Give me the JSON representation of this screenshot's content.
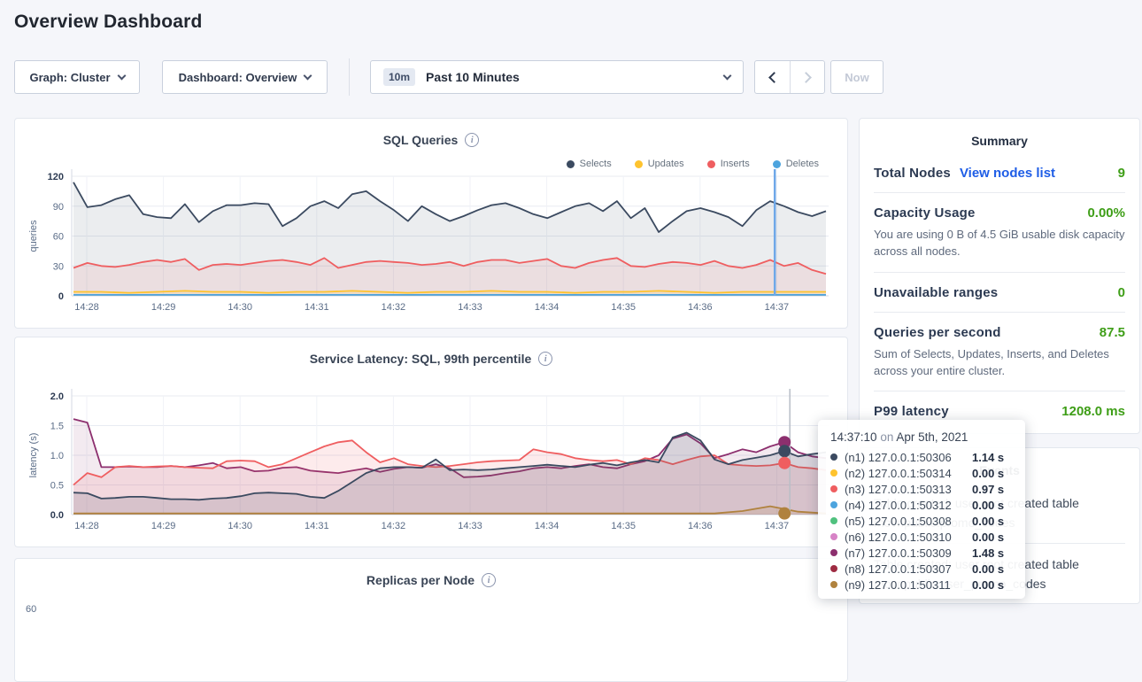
{
  "page": {
    "title": "Overview Dashboard"
  },
  "controls": {
    "graph_dropdown": "Graph: Cluster",
    "dashboard_dropdown": "Dashboard: Overview",
    "time_badge": "10m",
    "time_label": "Past 10 Minutes",
    "now_label": "Now"
  },
  "colors": {
    "selects": "#3b4a60",
    "updates": "#fec32e",
    "inserts": "#ef5e60",
    "deletes": "#4da4de",
    "n5_green": "#50c17e",
    "n6_pink": "#d783c6",
    "n7_purple": "#8c2f6e",
    "n8_maroon": "#9e2b42",
    "n9_khaki": "#b0823e",
    "accent_green": "#3e9e17",
    "link_blue": "#1e5de6",
    "sql_hover_line": "#6fa8e8",
    "latency_hover_line": "#b9bec7"
  },
  "chart_data": [
    {
      "id": "sql",
      "type": "line",
      "title": "SQL Queries",
      "ylabel": "queries",
      "ylim": [
        0,
        120
      ],
      "y_ticks": [
        0,
        30,
        60,
        90,
        120
      ],
      "y_tick_labels": [
        "0",
        "30",
        "60",
        "90",
        "120"
      ],
      "x_ticks": [
        "14:28",
        "14:29",
        "14:30",
        "14:31",
        "14:32",
        "14:33",
        "14:34",
        "14:35",
        "14:36",
        "14:37"
      ],
      "grid": true,
      "legend_position": "top-right",
      "legend": [
        {
          "label": "Selects",
          "color": "#3b4a60"
        },
        {
          "label": "Updates",
          "color": "#fec32e"
        },
        {
          "label": "Inserts",
          "color": "#ef5e60"
        },
        {
          "label": "Deletes",
          "color": "#4da4de"
        }
      ],
      "series": [
        {
          "name": "Selects",
          "color": "#3b4a60",
          "fill": "rgba(59,74,96,0.10)",
          "values": [
            114,
            89,
            91,
            97,
            101,
            82,
            79,
            78,
            92,
            74,
            85,
            91,
            91,
            93,
            92,
            70,
            78,
            90,
            95,
            88,
            102,
            105,
            95,
            86,
            75,
            90,
            82,
            75,
            80,
            86,
            91,
            93,
            88,
            82,
            78,
            84,
            90,
            93,
            85,
            95,
            78,
            88,
            64,
            75,
            85,
            88,
            84,
            79,
            70,
            86,
            95,
            90,
            84,
            80,
            85
          ]
        },
        {
          "name": "Inserts",
          "color": "#ef5e60",
          "fill": "rgba(239,94,96,0.10)",
          "values": [
            28,
            33,
            30,
            29,
            31,
            34,
            36,
            34,
            37,
            26,
            31,
            32,
            31,
            33,
            35,
            36,
            34,
            31,
            38,
            28,
            31,
            34,
            35,
            34,
            33,
            31,
            32,
            34,
            30,
            34,
            36,
            36,
            33,
            35,
            37,
            30,
            28,
            33,
            36,
            38,
            30,
            29,
            32,
            34,
            33,
            31,
            35,
            30,
            28,
            31,
            36,
            30,
            33,
            26,
            22
          ]
        },
        {
          "name": "Updates",
          "color": "#fec32e",
          "fill": "rgba(254,195,46,0.15)",
          "values": [
            4,
            4,
            3,
            4,
            5,
            4,
            4,
            3,
            4,
            4,
            5,
            4,
            3,
            4,
            4,
            5,
            4,
            4,
            3,
            4,
            4,
            5,
            4,
            3,
            4,
            4,
            4,
            4
          ]
        },
        {
          "name": "Deletes",
          "color": "#4da4de",
          "fill": "rgba(77,164,222,0.12)",
          "values": [
            1,
            1,
            1,
            1,
            1,
            1,
            1,
            1,
            1,
            1
          ]
        }
      ],
      "hover": {
        "x_frac": 0.932,
        "line_color": "#6fa8e8",
        "line_width": 2.5,
        "dots": []
      }
    },
    {
      "id": "latency",
      "type": "line",
      "title": "Service Latency: SQL, 99th percentile",
      "ylabel": "latency (s)",
      "ylim": [
        0,
        2.0
      ],
      "y_ticks": [
        0,
        0.5,
        1.0,
        1.5,
        2.0
      ],
      "y_tick_labels": [
        "0.0",
        "0.5",
        "1.0",
        "1.5",
        "2.0"
      ],
      "x_ticks": [
        "14:28",
        "14:29",
        "14:30",
        "14:31",
        "14:32",
        "14:33",
        "14:34",
        "14:35",
        "14:36",
        "14:37"
      ],
      "grid": true,
      "series": [
        {
          "name": "(n7) 127.0.0.1:50309",
          "color": "#8c2f6e",
          "fill": "rgba(140,47,110,0.10)",
          "values": [
            1.61,
            1.55,
            0.8,
            0.8,
            0.81,
            0.8,
            0.8,
            0.82,
            0.8,
            0.83,
            0.87,
            0.78,
            0.8,
            0.73,
            0.74,
            0.79,
            0.8,
            0.74,
            0.72,
            0.7,
            0.74,
            0.78,
            0.72,
            0.77,
            0.8,
            0.79,
            0.85,
            0.78,
            0.63,
            0.64,
            0.66,
            0.7,
            0.73,
            0.78,
            0.8,
            0.78,
            0.82,
            0.85,
            0.8,
            0.78,
            0.85,
            0.9,
            1.0,
            1.28,
            1.35,
            1.2,
            0.95,
            1.02,
            1.1,
            1.05,
            1.15,
            1.22,
            1.05,
            0.98,
            0.95
          ]
        },
        {
          "name": "(n3) 127.0.0.1:50313",
          "color": "#ef5e60",
          "fill": "rgba(239,94,96,0.12)",
          "values": [
            0.5,
            0.7,
            0.63,
            0.8,
            0.82,
            0.8,
            0.81,
            0.82,
            0.8,
            0.79,
            0.78,
            0.9,
            0.91,
            0.9,
            0.8,
            0.85,
            0.95,
            1.05,
            1.15,
            1.22,
            1.25,
            1.05,
            0.88,
            0.95,
            0.85,
            0.82,
            0.8,
            0.82,
            0.85,
            0.88,
            0.9,
            0.91,
            0.92,
            1.1,
            1.05,
            1.02,
            0.95,
            0.92,
            0.9,
            0.92,
            0.85,
            0.95,
            0.92,
            0.85,
            0.92,
            0.98,
            1.0,
            0.85,
            0.83,
            0.82,
            0.83,
            0.87,
            0.8,
            0.78,
            0.75
          ]
        },
        {
          "name": "(n1) 127.0.0.1:50306",
          "color": "#3b4a60",
          "fill": "rgba(59,74,96,0.15)",
          "values": [
            0.37,
            0.36,
            0.27,
            0.28,
            0.3,
            0.3,
            0.28,
            0.26,
            0.26,
            0.25,
            0.27,
            0.28,
            0.31,
            0.36,
            0.37,
            0.36,
            0.35,
            0.3,
            0.28,
            0.4,
            0.55,
            0.7,
            0.78,
            0.8,
            0.8,
            0.79,
            0.93,
            0.75,
            0.76,
            0.75,
            0.76,
            0.78,
            0.8,
            0.82,
            0.84,
            0.82,
            0.8,
            0.84,
            0.87,
            0.83,
            0.88,
            0.92,
            0.88,
            1.3,
            1.38,
            1.25,
            0.93,
            0.85,
            0.92,
            0.96,
            1.0,
            1.07,
            0.98,
            1.02,
            1.05
          ]
        },
        {
          "name": "(n9) 127.0.0.1:50311",
          "color": "#b0823e",
          "fill": "rgba(176,130,62,0.15)",
          "values": [
            0.02,
            0.02,
            0.02,
            0.02,
            0.02,
            0.02,
            0.02,
            0.02,
            0.02,
            0.02,
            0.02,
            0.02,
            0.02,
            0.02,
            0.02,
            0.02,
            0.02,
            0.02,
            0.02,
            0.02,
            0.02,
            0.02,
            0.02,
            0.02,
            0.06,
            0.14,
            0.05,
            0.02
          ]
        }
      ],
      "hover": {
        "x_frac": 0.952,
        "line_color": "#b9bec7",
        "line_width": 1.5,
        "dots": [
          {
            "color": "#8c2f6e",
            "v": 1.22
          },
          {
            "color": "#3b4a60",
            "v": 1.07
          },
          {
            "color": "#ef5e60",
            "v": 0.87
          },
          {
            "color": "#b0823e",
            "v": 0.02
          }
        ]
      }
    },
    {
      "id": "replicas",
      "type": "line",
      "title": "Replicas per Node",
      "partial": true,
      "y_tick_peek": "60"
    }
  ],
  "summary": {
    "title": "Summary",
    "rows": [
      {
        "label": "Total Nodes",
        "link": "View nodes list",
        "value": "9"
      },
      {
        "label": "Capacity Usage",
        "value": "0.00%",
        "desc": "You are using 0 B of 4.5 GiB usable disk capacity across all nodes."
      },
      {
        "label": "Unavailable ranges",
        "value": "0"
      },
      {
        "label": "Queries per second",
        "value": "87.5",
        "desc": "Sum of Selects, Updates, Inserts, and Deletes across your entire cluster."
      },
      {
        "label": "P99 latency",
        "value": "1208.0 ms"
      }
    ]
  },
  "events": {
    "title": "Events",
    "items": [
      {
        "line1": "Table created: user root created table",
        "line2": "movr.public.promo_codes"
      },
      {
        "line1": "Table created: user root created table",
        "line2": "movr.public.user_promo_codes"
      }
    ]
  },
  "tooltip": {
    "time": "14:37:10",
    "conj": " on ",
    "date": "Apr 5th, 2021",
    "rows": [
      {
        "dot": "#3b4a60",
        "label": "(n1) 127.0.0.1:50306",
        "value": "1.14 s"
      },
      {
        "dot": "#fec32e",
        "label": "(n2) 127.0.0.1:50314",
        "value": "0.00 s"
      },
      {
        "dot": "#ef5e60",
        "label": "(n3) 127.0.0.1:50313",
        "value": "0.97 s"
      },
      {
        "dot": "#4da4de",
        "label": "(n4) 127.0.0.1:50312",
        "value": "0.00 s"
      },
      {
        "dot": "#50c17e",
        "label": "(n5) 127.0.0.1:50308",
        "value": "0.00 s"
      },
      {
        "dot": "#d783c6",
        "label": "(n6) 127.0.0.1:50310",
        "value": "0.00 s"
      },
      {
        "dot": "#8c2f6e",
        "label": "(n7) 127.0.0.1:50309",
        "value": "1.48 s"
      },
      {
        "dot": "#9e2b42",
        "label": "(n8) 127.0.0.1:50307",
        "value": "0.00 s"
      },
      {
        "dot": "#b0823e",
        "label": "(n9) 127.0.0.1:50311",
        "value": "0.00 s"
      }
    ]
  }
}
